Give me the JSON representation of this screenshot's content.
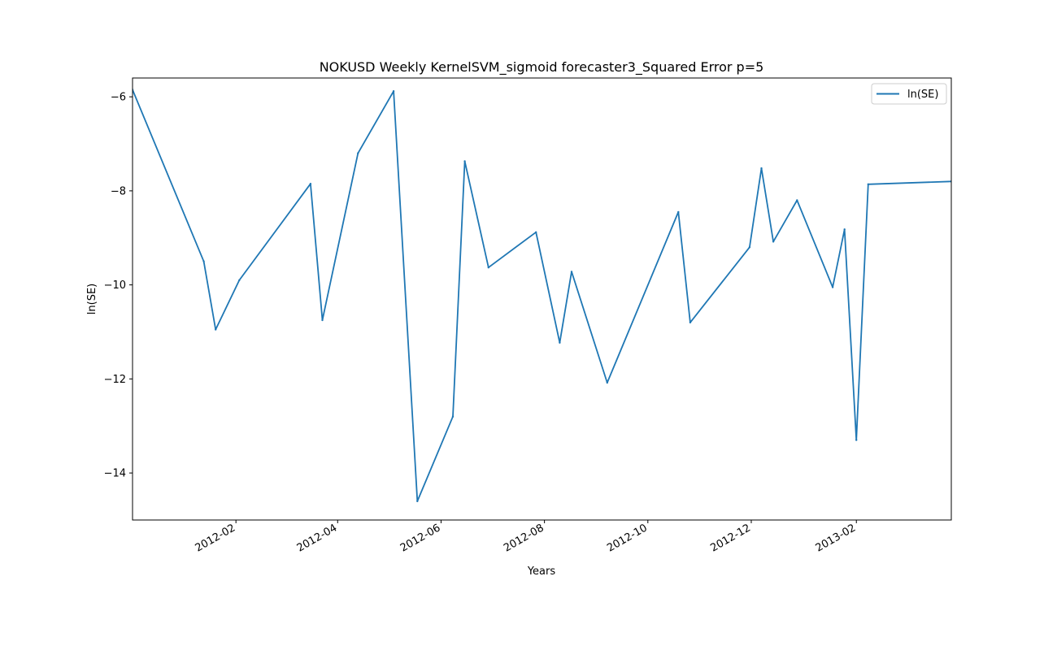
{
  "chart_data": {
    "type": "line",
    "title": "NOKUSD Weekly KernelSVM_sigmoid forecaster3_Squared Error p=5",
    "xlabel": "Years",
    "ylabel": "ln(SE)",
    "legend": {
      "placement": "top-right",
      "entries": [
        "ln(SE)"
      ]
    },
    "grid": false,
    "xlim": [
      "2011-12-02",
      "2013-03-29"
    ],
    "ylim": [
      -15.0,
      -5.6
    ],
    "x_ticks": [
      "2012-02",
      "2012-04",
      "2012-06",
      "2012-08",
      "2012-10",
      "2012-12",
      "2013-02"
    ],
    "y_ticks": [
      -14,
      -12,
      -10,
      -8,
      -6
    ],
    "series": [
      {
        "name": "ln(SE)",
        "color": "#1f77b4",
        "x": [
          "2011-12-02",
          "2012-01-13",
          "2012-01-20",
          "2012-02-03",
          "2012-03-16",
          "2012-03-23",
          "2012-04-13",
          "2012-05-04",
          "2012-05-18",
          "2012-06-08",
          "2012-06-15",
          "2012-06-29",
          "2012-07-27",
          "2012-08-10",
          "2012-08-17",
          "2012-09-07",
          "2012-10-19",
          "2012-10-26",
          "2012-11-30",
          "2012-12-07",
          "2012-12-14",
          "2012-12-28",
          "2013-01-18",
          "2013-01-25",
          "2013-02-01",
          "2013-02-08",
          "2013-03-29"
        ],
        "values": [
          -5.85,
          -9.5,
          -10.95,
          -9.9,
          -7.85,
          -10.75,
          -7.2,
          -5.88,
          -14.6,
          -12.8,
          -7.37,
          -9.63,
          -8.88,
          -11.23,
          -9.72,
          -12.08,
          -8.45,
          -10.8,
          -9.2,
          -7.52,
          -9.08,
          -8.2,
          -10.05,
          -8.82,
          -13.3,
          -7.86,
          -7.8
        ]
      }
    ]
  }
}
